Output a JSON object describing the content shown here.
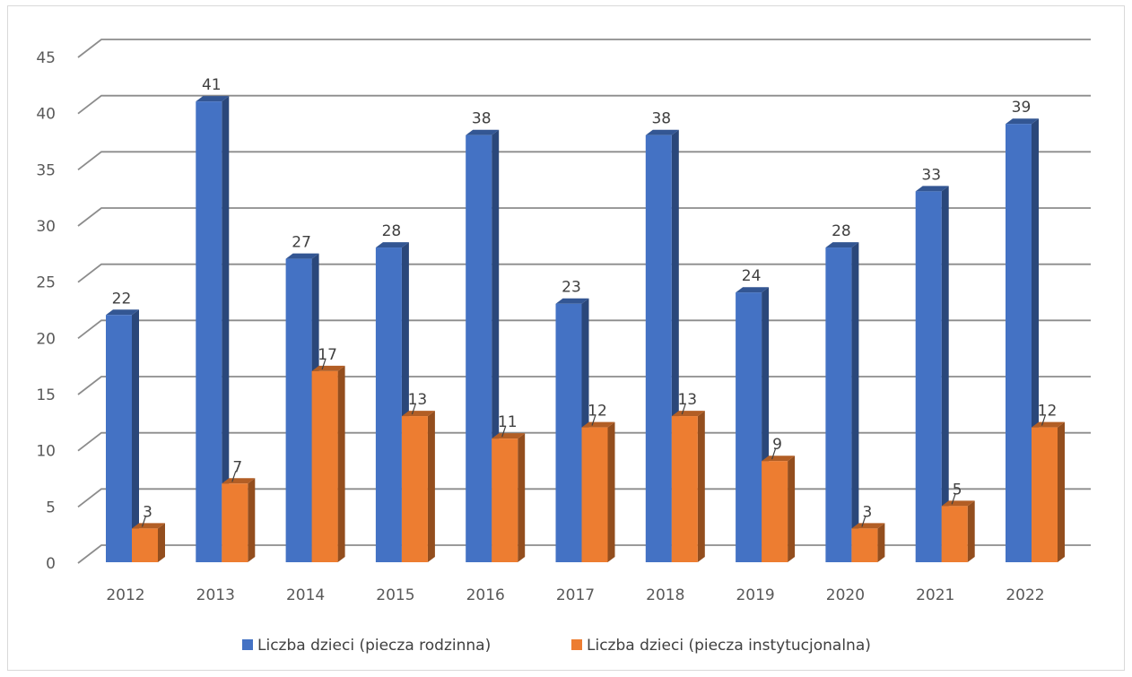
{
  "chart_data": {
    "type": "bar",
    "categories": [
      "2012",
      "2013",
      "2014",
      "2015",
      "2016",
      "2017",
      "2018",
      "2019",
      "2020",
      "2021",
      "2022"
    ],
    "series": [
      {
        "name": "Liczba dzieci (piecza rodzinna)",
        "color": "#4472c4",
        "values": [
          22,
          41,
          27,
          28,
          38,
          23,
          38,
          24,
          28,
          33,
          39
        ]
      },
      {
        "name": "Liczba dzieci (piecza instytucjonalna)",
        "color": "#ed7d31",
        "values": [
          3,
          7,
          17,
          13,
          11,
          12,
          13,
          9,
          3,
          5,
          12
        ]
      }
    ],
    "yticks": [
      "0",
      "5",
      "10",
      "15",
      "20",
      "25",
      "30",
      "35",
      "40",
      "45"
    ],
    "ylim": [
      0,
      45
    ],
    "title": "",
    "xlabel": "",
    "ylabel": "",
    "grid": true,
    "style": "3d-clustered-column",
    "legend_position": "bottom"
  }
}
